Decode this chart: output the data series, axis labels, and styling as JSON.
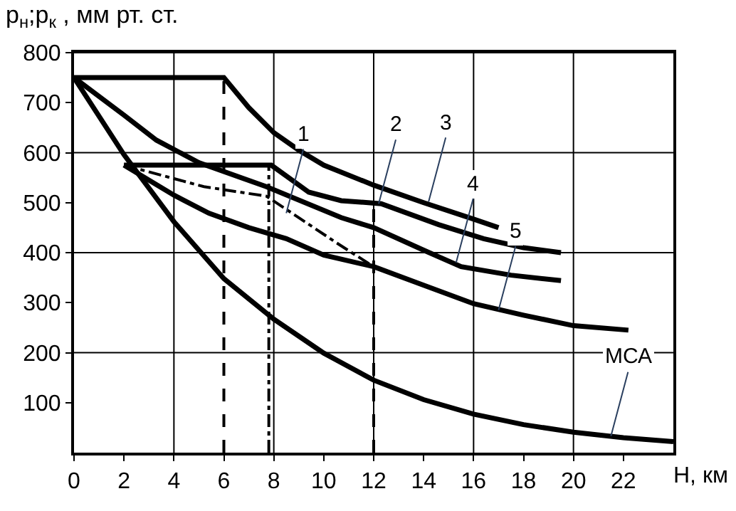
{
  "chart_data": {
    "type": "line",
    "xlabel": "H, км",
    "ylabel": "p$_{н}$;p$_{к}$ , мм рт. ст.",
    "xlim": [
      0,
      24
    ],
    "ylim": [
      0,
      800
    ],
    "xticks": [
      0,
      2,
      4,
      6,
      8,
      10,
      12,
      14,
      16,
      18,
      20,
      22
    ],
    "yticks": [
      100,
      200,
      300,
      400,
      500,
      600,
      700,
      800
    ],
    "grid": true,
    "marker": "none",
    "series": [
      {
        "color": "#000000",
        "line_style": "solid",
        "x": [
          0,
          6,
          7,
          8,
          9,
          10,
          12,
          14,
          16,
          17
        ],
        "values": [
          750,
          750,
          690,
          640,
          605,
          575,
          535,
          500,
          467,
          450
        ]
      },
      {
        "color": "#000000",
        "line_style": "solid",
        "x": [
          2,
          7.9,
          9.4,
          10.7,
          12.3,
          14.6,
          16.4,
          18,
          19.5
        ],
        "values": [
          575,
          575,
          521,
          504,
          498,
          456,
          428,
          410,
          400
        ]
      },
      {
        "color": "#000000",
        "line_style": "solid",
        "x": [
          0,
          2,
          3.3,
          5,
          7.7,
          10.7,
          12,
          14,
          15.5,
          17.5,
          19.5
        ],
        "values": [
          750,
          675,
          625,
          580,
          532,
          470,
          450,
          405,
          372,
          355,
          344
        ]
      },
      {
        "color": "#000000",
        "line_style": "dashdot",
        "x": [
          2,
          5.2,
          7.7,
          9,
          10.5,
          12
        ],
        "values": [
          575,
          532,
          513,
          470,
          420,
          372
        ]
      },
      {
        "color": "#000000",
        "line_style": "solid",
        "x": [
          2,
          4,
          5.4,
          7,
          8.5,
          10,
          12,
          14,
          16,
          18,
          20,
          22.2
        ],
        "values": [
          575,
          515,
          479,
          450,
          428,
          395,
          372,
          335,
          298,
          275,
          254,
          245
        ]
      },
      {
        "color": "#000000",
        "line_style": "solid",
        "x": [
          0,
          2,
          4,
          6,
          8,
          10,
          12,
          14,
          16,
          18,
          20,
          22,
          24
        ],
        "values": [
          750,
          596,
          462,
          348,
          267,
          199,
          145,
          106,
          77,
          56,
          41,
          30,
          22
        ]
      },
      {
        "color": "#000000",
        "line_style": "dashed",
        "x": [
          6,
          6
        ],
        "values": [
          0,
          750
        ]
      },
      {
        "color": "#000000",
        "line_style": "dashdot",
        "x": [
          7.8,
          7.8
        ],
        "values": [
          0,
          575
        ]
      },
      {
        "color": "#000000",
        "line_style": "dashed",
        "x": [
          12,
          12
        ],
        "values": [
          0,
          498
        ]
      }
    ],
    "annotations": [
      {
        "text": "1",
        "x": 8.5,
        "y": 479
      },
      {
        "text": "2",
        "x": 12.2,
        "y": 498
      },
      {
        "text": "3",
        "x": 14.2,
        "y": 502
      },
      {
        "text": "4",
        "x": 15.3,
        "y": 380
      },
      {
        "text": "5",
        "x": 17,
        "y": 285
      },
      {
        "text": "МСА",
        "x": 21.5,
        "y": 33
      }
    ]
  }
}
